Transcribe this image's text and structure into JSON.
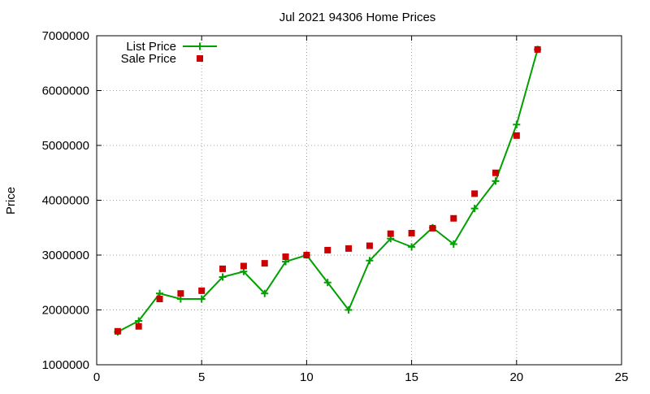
{
  "chart_data": {
    "type": "line",
    "title": "Jul 2021 94306 Home Prices",
    "xlabel": "",
    "ylabel": "Price",
    "xlim": [
      0,
      25
    ],
    "ylim": [
      1000000,
      7000000
    ],
    "x_ticks": [
      0,
      5,
      10,
      15,
      20,
      25
    ],
    "y_ticks": [
      1000000,
      2000000,
      3000000,
      4000000,
      5000000,
      6000000,
      7000000
    ],
    "x_tick_labels": [
      "0",
      "5",
      "10",
      "15",
      "20",
      "25"
    ],
    "y_tick_labels": [
      "1000000",
      "2000000",
      "3000000",
      "4000000",
      "5000000",
      "6000000",
      "7000000"
    ],
    "grid": true,
    "legend_position": "top-left",
    "series": [
      {
        "name": "List Price",
        "style": "line+plus",
        "color": "#00a000",
        "x": [
          1,
          2,
          3,
          4,
          5,
          6,
          7,
          8,
          9,
          10,
          11,
          12,
          13,
          14,
          15,
          16,
          17,
          18,
          19,
          20,
          21
        ],
        "values": [
          1600000,
          1800000,
          2300000,
          2200000,
          2200000,
          2600000,
          2700000,
          2300000,
          2880000,
          3000000,
          2500000,
          2000000,
          2900000,
          3300000,
          3150000,
          3500000,
          3200000,
          3850000,
          4350000,
          5380000,
          6750000
        ]
      },
      {
        "name": "Sale Price",
        "style": "square",
        "color": "#cc0000",
        "x": [
          1,
          2,
          3,
          4,
          5,
          6,
          7,
          8,
          9,
          10,
          11,
          12,
          13,
          14,
          15,
          16,
          17,
          18,
          19,
          20,
          21
        ],
        "values": [
          1610000,
          1700000,
          2200000,
          2300000,
          2350000,
          2750000,
          2800000,
          2850000,
          2970000,
          3000000,
          3090000,
          3120000,
          3170000,
          3390000,
          3400000,
          3490000,
          3670000,
          4120000,
          4500000,
          5180000,
          6750000
        ]
      }
    ]
  }
}
